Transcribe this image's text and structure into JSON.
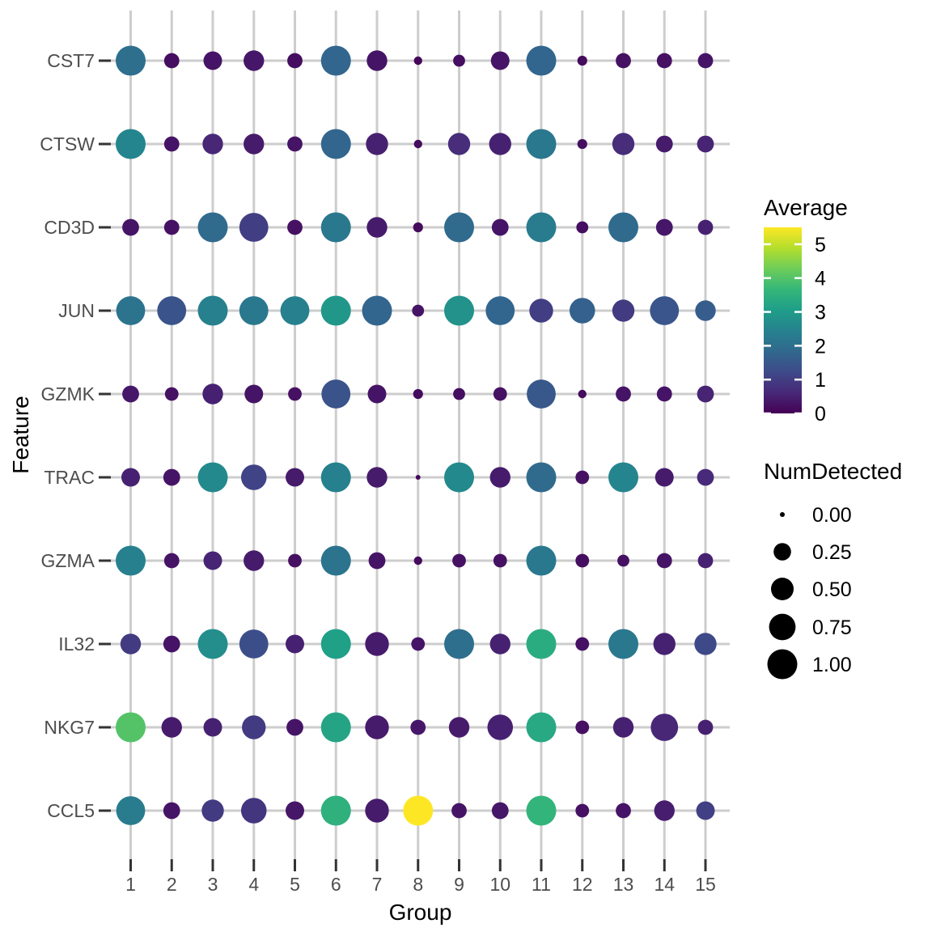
{
  "figure": {
    "background": "#ffffff",
    "grid_color": "#cdcdcd",
    "tick_color": "#333333",
    "axis_text_color": "#4d4d4d",
    "title_color": "#000000"
  },
  "chart_data": {
    "type": "scatter",
    "subtype": "dot-plot",
    "title": "",
    "xlabel": "Group",
    "ylabel": "Feature",
    "x_categories": [
      "1",
      "2",
      "3",
      "4",
      "5",
      "6",
      "7",
      "8",
      "9",
      "10",
      "11",
      "12",
      "13",
      "14",
      "15"
    ],
    "y_categories": [
      "CST7",
      "CTSW",
      "CD3D",
      "JUN",
      "GZMK",
      "TRAC",
      "GZMA",
      "IL32",
      "NKG7",
      "CCL5"
    ],
    "grid": true,
    "color_legend": {
      "title": "Average",
      "ticks": [
        5,
        4,
        3,
        2,
        1,
        0
      ],
      "domain": [
        0,
        5.5
      ],
      "colormap": "viridis",
      "stops": [
        "#440154",
        "#482878",
        "#3e4a89",
        "#31688e",
        "#26828e",
        "#1f9e89",
        "#35b779",
        "#6dcd59",
        "#b4de2c",
        "#fde725"
      ]
    },
    "size_legend": {
      "title": "NumDetected",
      "entries": [
        "0.00",
        "0.25",
        "0.50",
        "0.75",
        "1.00"
      ],
      "values": [
        0,
        0.25,
        0.5,
        0.75,
        1
      ]
    },
    "series": [
      {
        "feature": "CST7",
        "average": [
          2.0,
          0.2,
          0.3,
          0.35,
          0.2,
          1.8,
          0.3,
          0.1,
          0.2,
          0.3,
          1.8,
          0.15,
          0.25,
          0.25,
          0.3
        ],
        "num_detected": [
          1.0,
          0.17,
          0.3,
          0.39,
          0.17,
          1.0,
          0.39,
          0.02,
          0.08,
          0.3,
          1.0,
          0.04,
          0.17,
          0.17,
          0.17
        ]
      },
      {
        "feature": "CTSW",
        "average": [
          2.5,
          0.3,
          0.6,
          0.4,
          0.3,
          1.8,
          0.5,
          0.15,
          0.7,
          0.5,
          2.2,
          0.2,
          0.7,
          0.4,
          0.55
        ],
        "num_detected": [
          1.0,
          0.17,
          0.39,
          0.39,
          0.17,
          1.0,
          0.48,
          0.02,
          0.48,
          0.48,
          1.0,
          0.04,
          0.48,
          0.23,
          0.23
        ]
      },
      {
        "feature": "CD3D",
        "average": [
          0.3,
          0.25,
          1.9,
          1.0,
          0.25,
          2.2,
          0.4,
          0.15,
          1.9,
          0.3,
          2.3,
          0.2,
          1.9,
          0.35,
          0.5
        ],
        "num_detected": [
          0.23,
          0.17,
          1.0,
          0.93,
          0.17,
          1.0,
          0.39,
          0.04,
          1.0,
          0.23,
          1.0,
          0.08,
          1.0,
          0.23,
          0.17
        ]
      },
      {
        "feature": "JUN",
        "average": [
          2.1,
          1.4,
          2.4,
          2.2,
          2.4,
          2.9,
          1.8,
          0.3,
          2.8,
          1.8,
          1.0,
          1.7,
          0.95,
          1.45,
          1.6
        ],
        "num_detected": [
          0.93,
          0.93,
          1.0,
          0.93,
          0.93,
          1.0,
          1.0,
          0.08,
          1.0,
          0.93,
          0.57,
          0.68,
          0.48,
          0.93,
          0.39
        ]
      },
      {
        "feature": "GZMK",
        "average": [
          0.35,
          0.25,
          0.5,
          0.3,
          0.25,
          1.4,
          0.3,
          0.15,
          0.2,
          0.25,
          1.5,
          0.15,
          0.3,
          0.3,
          0.55
        ],
        "num_detected": [
          0.23,
          0.12,
          0.39,
          0.3,
          0.12,
          0.93,
          0.3,
          0.04,
          0.08,
          0.12,
          0.93,
          0.02,
          0.17,
          0.17,
          0.23
        ]
      },
      {
        "feature": "TRAC",
        "average": [
          0.5,
          0.3,
          2.6,
          1.1,
          0.4,
          2.4,
          0.4,
          0.1,
          2.6,
          0.4,
          1.9,
          0.25,
          2.5,
          0.4,
          0.65
        ],
        "num_detected": [
          0.3,
          0.23,
          1.0,
          0.68,
          0.3,
          1.0,
          0.39,
          0.0,
          1.0,
          0.39,
          1.0,
          0.12,
          1.0,
          0.3,
          0.23
        ]
      },
      {
        "feature": "GZMA",
        "average": [
          2.4,
          0.3,
          0.55,
          0.4,
          0.25,
          2.1,
          0.3,
          0.15,
          0.25,
          0.25,
          2.2,
          0.2,
          0.25,
          0.3,
          0.5
        ],
        "num_detected": [
          1.0,
          0.17,
          0.3,
          0.39,
          0.12,
          1.0,
          0.23,
          0.02,
          0.12,
          0.12,
          1.0,
          0.12,
          0.08,
          0.17,
          0.17
        ]
      },
      {
        "feature": "IL32",
        "average": [
          0.95,
          0.3,
          2.7,
          1.3,
          0.5,
          3.1,
          0.4,
          0.3,
          2.0,
          0.5,
          3.4,
          0.25,
          2.2,
          0.5,
          1.2
        ],
        "num_detected": [
          0.39,
          0.23,
          1.0,
          0.93,
          0.3,
          1.0,
          0.57,
          0.12,
          1.0,
          0.39,
          1.0,
          0.12,
          1.0,
          0.48,
          0.48
        ]
      },
      {
        "feature": "NKG7",
        "average": [
          4.0,
          0.4,
          0.5,
          0.95,
          0.3,
          3.2,
          0.4,
          0.35,
          0.4,
          0.5,
          3.3,
          0.25,
          0.5,
          0.6,
          0.5
        ],
        "num_detected": [
          1.0,
          0.39,
          0.3,
          0.57,
          0.23,
          1.0,
          0.57,
          0.17,
          0.39,
          0.68,
          1.0,
          0.12,
          0.39,
          0.8,
          0.17
        ]
      },
      {
        "feature": "CCL5",
        "average": [
          2.3,
          0.3,
          0.95,
          0.85,
          0.35,
          3.5,
          0.4,
          5.5,
          0.3,
          0.35,
          3.6,
          0.25,
          0.3,
          0.45,
          1.05
        ],
        "num_detected": [
          0.93,
          0.23,
          0.48,
          0.68,
          0.3,
          1.0,
          0.57,
          1.0,
          0.17,
          0.23,
          1.0,
          0.12,
          0.17,
          0.39,
          0.3
        ]
      }
    ]
  }
}
